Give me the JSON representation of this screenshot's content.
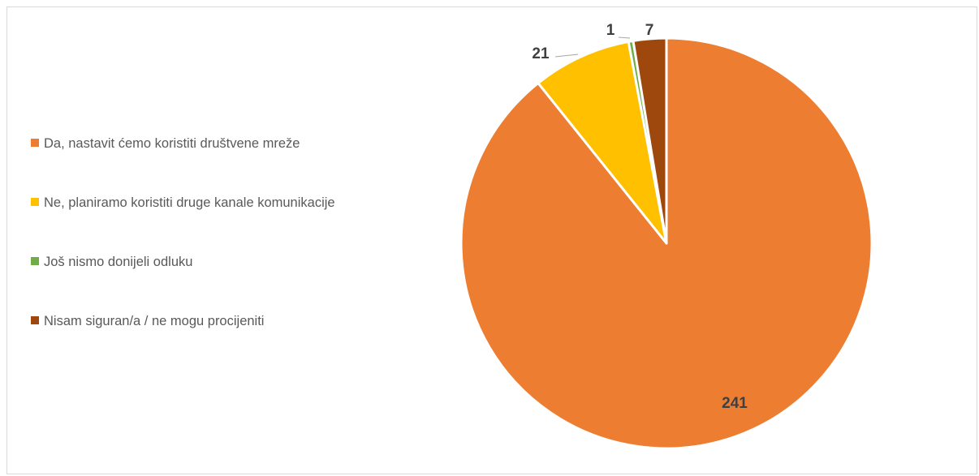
{
  "chart_data": {
    "type": "pie",
    "slices": [
      {
        "label": "Da, nastavit ćemo koristiti društvene mreže",
        "value": 241,
        "color": "#ED7D31"
      },
      {
        "label": "Ne, planiramo koristiti druge kanale komunikacije",
        "value": 21,
        "color": "#FFC000"
      },
      {
        "label": "Još nismo donijeli odluku",
        "value": 1,
        "color": "#70AD47"
      },
      {
        "label": "Nisam siguran/a / ne mogu procijeniti",
        "value": 7,
        "color": "#9E480E"
      }
    ],
    "legend_position": "left",
    "data_labels": true,
    "start_angle": "12 o'clock",
    "direction": "clockwise"
  }
}
